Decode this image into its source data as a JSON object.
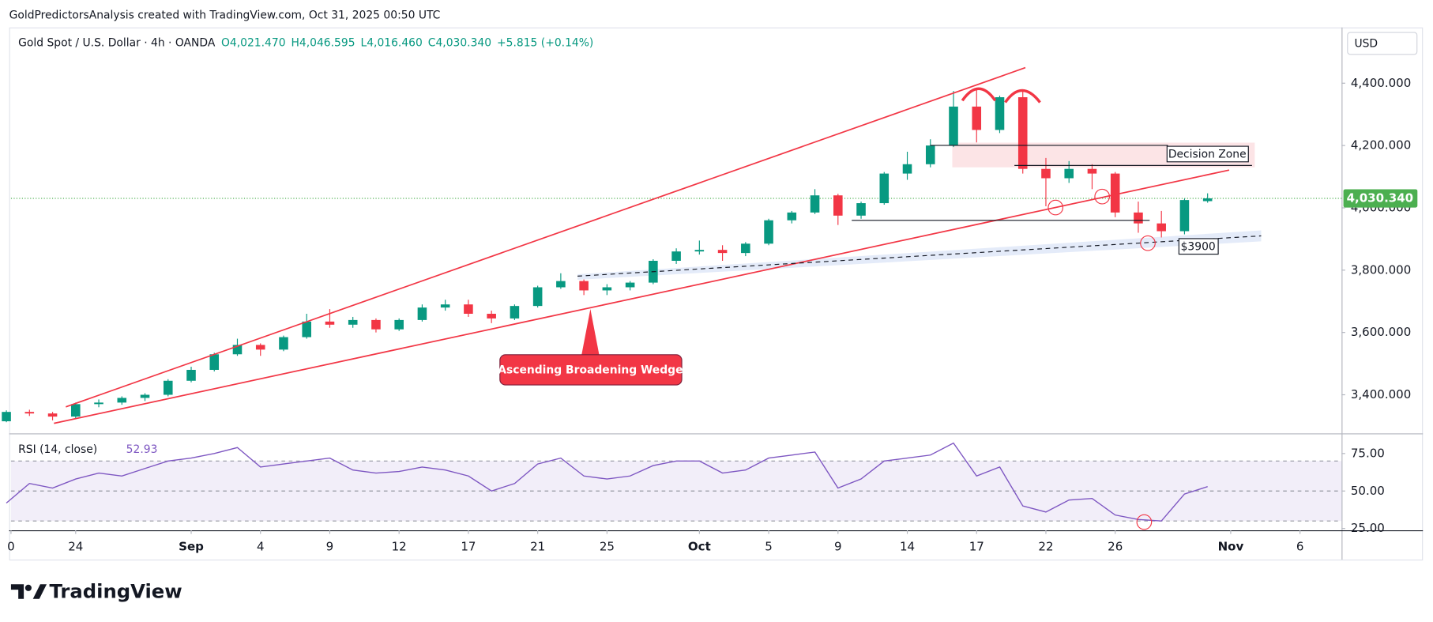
{
  "chart_data": [
    {
      "type": "candlestick",
      "attribution": "GoldPredictorsAnalysis created with TradingView.com, Oct 31, 2025 00:50 UTC",
      "title": "Gold Spot / U.S. Dollar · 4h · OANDA",
      "ohlc_labels": [
        "O4,021.470",
        "H4,046.595",
        "L4,016.460",
        "C4,030.340",
        "+5.815 (+0.14%)"
      ],
      "currency": "USD",
      "annotations": [
        "Ascending Broadening Wedge",
        "Decision Zone",
        "$3900"
      ],
      "brand": "TradingView",
      "x": [
        -3,
        -2,
        -1,
        0,
        1,
        2,
        3,
        4,
        5,
        6,
        7,
        8,
        9,
        10,
        11,
        12,
        13,
        14,
        15,
        16,
        17,
        18,
        19,
        20,
        21,
        22,
        23,
        24,
        25,
        26,
        27,
        28,
        29,
        30,
        31,
        32,
        33,
        34,
        35,
        36,
        37,
        38,
        39,
        40,
        41,
        42,
        43,
        44,
        45,
        46,
        47,
        48,
        49
      ],
      "open": [
        3315,
        3345,
        3340,
        3330,
        3370,
        3375,
        3390,
        3400,
        3445,
        3480,
        3530,
        3560,
        3545,
        3585,
        3635,
        3625,
        3640,
        3610,
        3640,
        3680,
        3690,
        3660,
        3645,
        3685,
        3745,
        3765,
        3735,
        3745,
        3760,
        3830,
        3860,
        3865,
        3855,
        3885,
        3960,
        3985,
        4040,
        3975,
        4015,
        4110,
        4140,
        4200,
        4325,
        4250,
        4355,
        4125,
        4095,
        4125,
        4110,
        3985,
        3950,
        3925,
        4021.47
      ],
      "high": [
        3350,
        3352,
        3345,
        3375,
        3385,
        3395,
        3405,
        3450,
        3490,
        3535,
        3580,
        3565,
        3590,
        3660,
        3675,
        3650,
        3645,
        3645,
        3690,
        3705,
        3705,
        3670,
        3690,
        3750,
        3790,
        3770,
        3755,
        3765,
        3835,
        3870,
        3895,
        3880,
        3890,
        3965,
        3990,
        4060,
        4045,
        4020,
        4115,
        4180,
        4220,
        4375,
        4380,
        4360,
        4380,
        4160,
        4150,
        4140,
        4115,
        4020,
        3990,
        4030,
        4046.595
      ],
      "low": [
        3312,
        3332,
        3318,
        3325,
        3360,
        3368,
        3380,
        3395,
        3440,
        3475,
        3525,
        3525,
        3540,
        3580,
        3615,
        3615,
        3600,
        3605,
        3635,
        3670,
        3650,
        3630,
        3640,
        3680,
        3740,
        3720,
        3720,
        3735,
        3755,
        3820,
        3850,
        3830,
        3845,
        3880,
        3950,
        3980,
        3945,
        3965,
        4010,
        4090,
        4130,
        4195,
        4210,
        4240,
        4110,
        4005,
        4080,
        4060,
        3970,
        3920,
        3905,
        3915,
        4016.46
      ],
      "close": [
        3345,
        3340,
        3330,
        3370,
        3375,
        3390,
        3400,
        3445,
        3480,
        3530,
        3560,
        3545,
        3585,
        3635,
        3625,
        3640,
        3610,
        3640,
        3680,
        3690,
        3660,
        3645,
        3685,
        3745,
        3765,
        3735,
        3745,
        3760,
        3830,
        3860,
        3865,
        3855,
        3885,
        3960,
        3985,
        4040,
        3975,
        4015,
        4110,
        4140,
        4200,
        4325,
        4250,
        4355,
        4125,
        4095,
        4125,
        4110,
        3985,
        3950,
        3925,
        4025,
        4030.34
      ],
      "up_color": "#089981",
      "down_color": "#f23645",
      "last_price": {
        "value": 4030.34,
        "label": "4,030.340"
      },
      "last_price_color": "#4caf50",
      "xlim": [
        -2.8,
        54.8
      ],
      "xticks": [
        {
          "value": -2.8,
          "label": "0"
        },
        {
          "value": 0,
          "label": "24"
        },
        {
          "value": 5,
          "label": "Sep"
        },
        {
          "value": 8,
          "label": "4"
        },
        {
          "value": 11,
          "label": "9"
        },
        {
          "value": 14,
          "label": "12"
        },
        {
          "value": 17,
          "label": "17"
        },
        {
          "value": 20,
          "label": "21"
        },
        {
          "value": 23,
          "label": "25"
        },
        {
          "value": 27,
          "label": "Oct"
        },
        {
          "value": 30,
          "label": "5"
        },
        {
          "value": 33,
          "label": "9"
        },
        {
          "value": 36,
          "label": "14"
        },
        {
          "value": 39,
          "label": "17"
        },
        {
          "value": 42,
          "label": "22"
        },
        {
          "value": 45,
          "label": "26"
        },
        {
          "value": 50,
          "label": "Nov"
        },
        {
          "value": 53,
          "label": "6"
        }
      ],
      "ylim": [
        3282,
        4579
      ],
      "yticks": [
        {
          "value": 3400,
          "label": "3,400.000"
        },
        {
          "value": 3600,
          "label": "3,600.000"
        },
        {
          "value": 3800,
          "label": "3,800.000"
        },
        {
          "value": 4000,
          "label": "4,000.000"
        },
        {
          "value": 4200,
          "label": "4,200.000"
        },
        {
          "value": 4400,
          "label": "4,400.000"
        }
      ],
      "grid": false
    },
    {
      "type": "line",
      "title": "RSI (14, close)",
      "last_value": 52.93,
      "x": [
        -3,
        -2,
        -1,
        0,
        1,
        2,
        3,
        4,
        5,
        6,
        7,
        8,
        9,
        10,
        11,
        12,
        13,
        14,
        15,
        16,
        17,
        18,
        19,
        20,
        21,
        22,
        23,
        24,
        25,
        26,
        27,
        28,
        29,
        30,
        31,
        32,
        33,
        34,
        35,
        36,
        37,
        38,
        39,
        40,
        41,
        42,
        43,
        44,
        45,
        46,
        47,
        48,
        49
      ],
      "values": [
        42,
        55,
        52,
        58,
        62,
        60,
        65,
        70,
        72,
        75,
        79,
        66,
        68,
        70,
        72,
        64,
        62,
        63,
        66,
        64,
        60,
        50,
        55,
        68,
        72,
        60,
        58,
        60,
        67,
        70,
        70,
        62,
        64,
        72,
        74,
        76,
        52,
        58,
        70,
        72,
        74,
        82,
        60,
        66,
        40,
        36,
        44,
        45,
        34,
        31,
        30,
        48,
        52.93
      ],
      "color": "#7e57c2",
      "bands": [
        30,
        50,
        70
      ],
      "ylim": [
        23.8,
        86
      ],
      "yticks": [
        {
          "value": 25,
          "label": "25.00"
        },
        {
          "value": 50,
          "label": "50.00"
        },
        {
          "value": 75,
          "label": "75.00"
        }
      ]
    }
  ]
}
